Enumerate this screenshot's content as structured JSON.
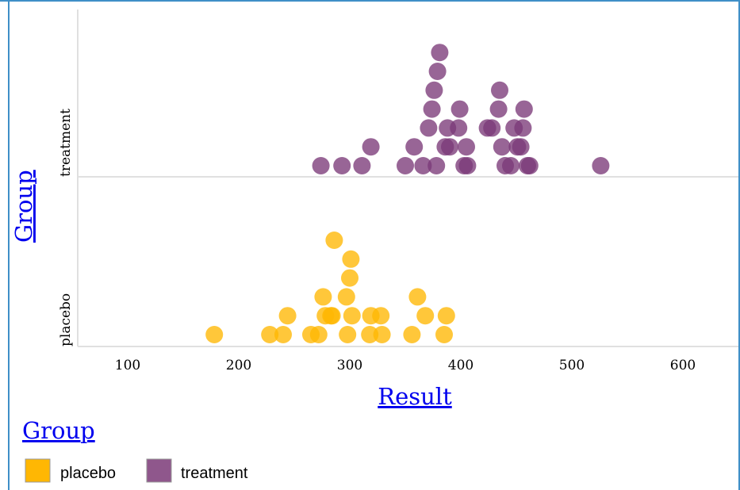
{
  "colors": {
    "placebo": "#ffb703",
    "treatment": "#7b3a78",
    "frame": "#3f8fc7",
    "axis": "#e0e0e0"
  },
  "chart_data": {
    "type": "scatter",
    "subtype": "dot-plot",
    "xlabel": "Result",
    "ylabel": "Group",
    "xlim": [
      55,
      650
    ],
    "x_ticks": [
      100,
      200,
      300,
      400,
      500,
      600
    ],
    "categories": [
      "placebo",
      "treatment"
    ],
    "legend": {
      "title": "Group",
      "placement": "bottom-left",
      "entries": [
        "placebo",
        "treatment"
      ]
    },
    "series": [
      {
        "name": "placebo",
        "points": [
          {
            "x": 178,
            "stack": 0
          },
          {
            "x": 228,
            "stack": 0
          },
          {
            "x": 240,
            "stack": 0
          },
          {
            "x": 244,
            "stack": 1
          },
          {
            "x": 265,
            "stack": 0
          },
          {
            "x": 272,
            "stack": 0
          },
          {
            "x": 276,
            "stack": 2
          },
          {
            "x": 283,
            "stack": 1
          },
          {
            "x": 284,
            "stack": 1
          },
          {
            "x": 286,
            "stack": 5
          },
          {
            "x": 278,
            "stack": 1
          },
          {
            "x": 298,
            "stack": 0
          },
          {
            "x": 302,
            "stack": 1
          },
          {
            "x": 297,
            "stack": 2
          },
          {
            "x": 300,
            "stack": 3
          },
          {
            "x": 301,
            "stack": 4
          },
          {
            "x": 318,
            "stack": 0
          },
          {
            "x": 319,
            "stack": 1
          },
          {
            "x": 328,
            "stack": 1
          },
          {
            "x": 329,
            "stack": 0
          },
          {
            "x": 356,
            "stack": 0
          },
          {
            "x": 361,
            "stack": 2
          },
          {
            "x": 368,
            "stack": 1
          },
          {
            "x": 385,
            "stack": 0
          },
          {
            "x": 387,
            "stack": 1
          }
        ]
      },
      {
        "name": "treatment",
        "points": [
          {
            "x": 274,
            "stack": 0
          },
          {
            "x": 293,
            "stack": 0
          },
          {
            "x": 311,
            "stack": 0
          },
          {
            "x": 319,
            "stack": 1
          },
          {
            "x": 350,
            "stack": 0
          },
          {
            "x": 358,
            "stack": 1
          },
          {
            "x": 366,
            "stack": 0
          },
          {
            "x": 371,
            "stack": 2
          },
          {
            "x": 374,
            "stack": 3
          },
          {
            "x": 376,
            "stack": 4
          },
          {
            "x": 378,
            "stack": 0
          },
          {
            "x": 379,
            "stack": 5
          },
          {
            "x": 381,
            "stack": 6
          },
          {
            "x": 386,
            "stack": 1
          },
          {
            "x": 388,
            "stack": 2
          },
          {
            "x": 390,
            "stack": 1
          },
          {
            "x": 398,
            "stack": 2
          },
          {
            "x": 399,
            "stack": 3
          },
          {
            "x": 403,
            "stack": 0
          },
          {
            "x": 405,
            "stack": 1
          },
          {
            "x": 406,
            "stack": 0
          },
          {
            "x": 424,
            "stack": 2
          },
          {
            "x": 428,
            "stack": 2
          },
          {
            "x": 434,
            "stack": 3
          },
          {
            "x": 435,
            "stack": 4
          },
          {
            "x": 437,
            "stack": 1
          },
          {
            "x": 440,
            "stack": 0
          },
          {
            "x": 445,
            "stack": 0
          },
          {
            "x": 448,
            "stack": 2
          },
          {
            "x": 451,
            "stack": 1
          },
          {
            "x": 454,
            "stack": 1
          },
          {
            "x": 456,
            "stack": 2
          },
          {
            "x": 457,
            "stack": 3
          },
          {
            "x": 460,
            "stack": 0
          },
          {
            "x": 462,
            "stack": 0
          },
          {
            "x": 526,
            "stack": 0
          }
        ]
      }
    ]
  }
}
